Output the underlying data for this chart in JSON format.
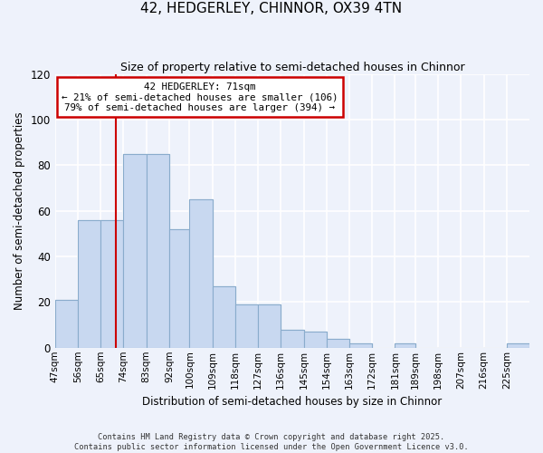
{
  "title": "42, HEDGERLEY, CHINNOR, OX39 4TN",
  "subtitle": "Size of property relative to semi-detached houses in Chinnor",
  "xlabel": "Distribution of semi-detached houses by size in Chinnor",
  "ylabel": "Number of semi-detached properties",
  "categories": [
    "47sqm",
    "56sqm",
    "65sqm",
    "74sqm",
    "83sqm",
    "92sqm",
    "100sqm",
    "109sqm",
    "118sqm",
    "127sqm",
    "136sqm",
    "145sqm",
    "154sqm",
    "163sqm",
    "172sqm",
    "181sqm",
    "189sqm",
    "198sqm",
    "207sqm",
    "216sqm",
    "225sqm"
  ],
  "values": [
    21,
    56,
    56,
    85,
    85,
    52,
    65,
    27,
    19,
    19,
    8,
    7,
    4,
    2,
    0,
    2,
    0,
    0,
    0,
    0,
    2
  ],
  "bar_color": "#c8d8f0",
  "bar_edge_color": "#8aaccc",
  "property_line_x": 71,
  "bin_edges": [
    47,
    56,
    65,
    74,
    83,
    92,
    100,
    109,
    118,
    127,
    136,
    145,
    154,
    163,
    172,
    181,
    189,
    198,
    207,
    216,
    225,
    234
  ],
  "annotation_title": "42 HEDGERLEY: 71sqm",
  "annotation_line1": "← 21% of semi-detached houses are smaller (106)",
  "annotation_line2": "79% of semi-detached houses are larger (394) →",
  "annotation_box_facecolor": "#ffffff",
  "annotation_box_edgecolor": "#cc0000",
  "red_line_color": "#cc0000",
  "ylim": [
    0,
    120
  ],
  "yticks": [
    0,
    20,
    40,
    60,
    80,
    100,
    120
  ],
  "background_color": "#eef2fb",
  "grid_color": "#ffffff",
  "footer_line1": "Contains HM Land Registry data © Crown copyright and database right 2025.",
  "footer_line2": "Contains public sector information licensed under the Open Government Licence v3.0."
}
